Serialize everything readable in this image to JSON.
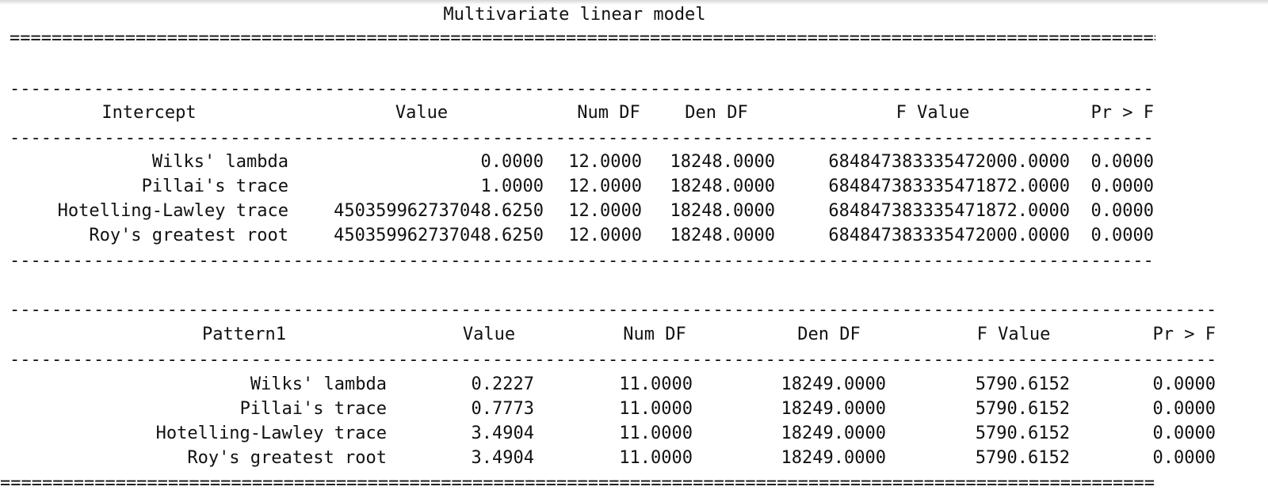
{
  "title": "Multivariate linear model",
  "rule_eq": "=========================================================================================================================================================================",
  "rule_dash": "-------------------------------------------------------------------------------------------------------------------------------------------------------------------------",
  "section1": {
    "headers": [
      "Intercept",
      "Value",
      "Num DF",
      "Den DF",
      "F Value",
      "Pr > F"
    ],
    "rows": [
      [
        "Wilks' lambda",
        "0.0000",
        "12.0000",
        "18248.0000",
        "684847383335472000.0000",
        "0.0000"
      ],
      [
        "Pillai's trace",
        "1.0000",
        "12.0000",
        "18248.0000",
        "684847383335471872.0000",
        "0.0000"
      ],
      [
        "Hotelling-Lawley trace",
        "450359962737048.6250",
        "12.0000",
        "18248.0000",
        "684847383335471872.0000",
        "0.0000"
      ],
      [
        "Roy's greatest root",
        "450359962737048.6250",
        "12.0000",
        "18248.0000",
        "684847383335472000.0000",
        "0.0000"
      ]
    ]
  },
  "section2": {
    "headers": [
      "Pattern1",
      "Value",
      "Num DF",
      "Den DF",
      "F Value",
      "Pr > F"
    ],
    "rows": [
      [
        "Wilks' lambda",
        "0.2227",
        "11.0000",
        "18249.0000",
        "5790.6152",
        "0.0000"
      ],
      [
        "Pillai's trace",
        "0.7773",
        "11.0000",
        "18249.0000",
        "5790.6152",
        "0.0000"
      ],
      [
        "Hotelling-Lawley trace",
        "3.4904",
        "11.0000",
        "18249.0000",
        "5790.6152",
        "0.0000"
      ],
      [
        "Roy's greatest root",
        "3.4904",
        "11.0000",
        "18249.0000",
        "5790.6152",
        "0.0000"
      ]
    ]
  }
}
